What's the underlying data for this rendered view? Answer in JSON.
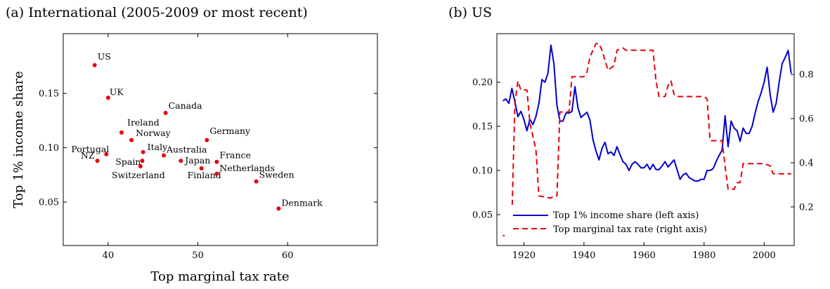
{
  "chart_data": [
    {
      "type": "scatter",
      "title": "(a) International (2005-2009 or most recent)",
      "xlabel": "Top marginal tax rate",
      "ylabel": "Top 1% income share",
      "xlim": [
        35,
        70
      ],
      "ylim": [
        0.01,
        0.205
      ],
      "xticks": [
        "40",
        "50",
        "60"
      ],
      "yticks": [
        "0.05",
        "0.10",
        "0.15"
      ],
      "color": "#e8000b",
      "points": [
        {
          "label": "US",
          "x": 38.5,
          "y": 0.176
        },
        {
          "label": "UK",
          "x": 40.0,
          "y": 0.146
        },
        {
          "label": "Canada",
          "x": 46.4,
          "y": 0.132
        },
        {
          "label": "Ireland",
          "x": 41.5,
          "y": 0.114
        },
        {
          "label": "Norway",
          "x": 42.6,
          "y": 0.107
        },
        {
          "label": "Germany",
          "x": 51.0,
          "y": 0.107
        },
        {
          "label": "Portugal",
          "x": 39.8,
          "y": 0.094
        },
        {
          "label": "Italy",
          "x": 43.9,
          "y": 0.096
        },
        {
          "label": "Australia",
          "x": 46.2,
          "y": 0.093
        },
        {
          "label": "NZ",
          "x": 38.8,
          "y": 0.088
        },
        {
          "label": "Spain",
          "x": 43.8,
          "y": 0.088
        },
        {
          "label": "Japan",
          "x": 48.1,
          "y": 0.088
        },
        {
          "label": "France",
          "x": 52.1,
          "y": 0.087
        },
        {
          "label": "Switzerland",
          "x": 43.6,
          "y": 0.083
        },
        {
          "label": "Finland",
          "x": 50.4,
          "y": 0.081
        },
        {
          "label": "Netherlands",
          "x": 52.1,
          "y": 0.076
        },
        {
          "label": "Sweden",
          "x": 56.5,
          "y": 0.069
        },
        {
          "label": "Denmark",
          "x": 59.0,
          "y": 0.044
        }
      ]
    },
    {
      "type": "line",
      "title": "(b) US",
      "xlim": [
        1911,
        2010
      ],
      "ylim_left": [
        0.015,
        0.255
      ],
      "ylim_right": [
        0.025,
        0.985
      ],
      "xticks": [
        "1920",
        "1940",
        "1960",
        "1980",
        "2000"
      ],
      "yticks_left": [
        "0.05",
        "0.10",
        "0.15",
        "0.20"
      ],
      "yticks_right": [
        "0.2",
        "0.4",
        "0.6",
        "0.8"
      ],
      "legend_position": "bottom-left",
      "series": [
        {
          "name": "Top 1% income share (left axis)",
          "axis": "left",
          "color": "#0000cc",
          "style": "solid",
          "points": [
            [
              1913,
              0.179
            ],
            [
              1914,
              0.181
            ],
            [
              1915,
              0.176
            ],
            [
              1916,
              0.193
            ],
            [
              1917,
              0.178
            ],
            [
              1918,
              0.161
            ],
            [
              1919,
              0.167
            ],
            [
              1920,
              0.158
            ],
            [
              1921,
              0.145
            ],
            [
              1922,
              0.158
            ],
            [
              1923,
              0.152
            ],
            [
              1924,
              0.161
            ],
            [
              1925,
              0.176
            ],
            [
              1926,
              0.203
            ],
            [
              1927,
              0.2
            ],
            [
              1928,
              0.21
            ],
            [
              1929,
              0.242
            ],
            [
              1930,
              0.221
            ],
            [
              1931,
              0.174
            ],
            [
              1932,
              0.156
            ],
            [
              1933,
              0.156
            ],
            [
              1934,
              0.165
            ],
            [
              1935,
              0.165
            ],
            [
              1936,
              0.167
            ],
            [
              1937,
              0.195
            ],
            [
              1938,
              0.171
            ],
            [
              1939,
              0.16
            ],
            [
              1940,
              0.163
            ],
            [
              1941,
              0.166
            ],
            [
              1942,
              0.157
            ],
            [
              1943,
              0.135
            ],
            [
              1944,
              0.122
            ],
            [
              1945,
              0.112
            ],
            [
              1946,
              0.125
            ],
            [
              1947,
              0.132
            ],
            [
              1948,
              0.119
            ],
            [
              1949,
              0.121
            ],
            [
              1950,
              0.117
            ],
            [
              1951,
              0.127
            ],
            [
              1952,
              0.118
            ],
            [
              1953,
              0.11
            ],
            [
              1954,
              0.107
            ],
            [
              1955,
              0.1
            ],
            [
              1956,
              0.107
            ],
            [
              1957,
              0.11
            ],
            [
              1958,
              0.107
            ],
            [
              1959,
              0.103
            ],
            [
              1960,
              0.103
            ],
            [
              1961,
              0.107
            ],
            [
              1962,
              0.101
            ],
            [
              1963,
              0.107
            ],
            [
              1964,
              0.101
            ],
            [
              1965,
              0.101
            ],
            [
              1966,
              0.105
            ],
            [
              1967,
              0.11
            ],
            [
              1968,
              0.104
            ],
            [
              1969,
              0.108
            ],
            [
              1970,
              0.112
            ],
            [
              1971,
              0.101
            ],
            [
              1972,
              0.09
            ],
            [
              1973,
              0.095
            ],
            [
              1974,
              0.097
            ],
            [
              1975,
              0.092
            ],
            [
              1976,
              0.09
            ],
            [
              1977,
              0.088
            ],
            [
              1978,
              0.088
            ],
            [
              1979,
              0.09
            ],
            [
              1980,
              0.09
            ],
            [
              1981,
              0.1
            ],
            [
              1982,
              0.1
            ],
            [
              1983,
              0.102
            ],
            [
              1984,
              0.11
            ],
            [
              1985,
              0.117
            ],
            [
              1986,
              0.123
            ],
            [
              1987,
              0.162
            ],
            [
              1988,
              0.127
            ],
            [
              1989,
              0.156
            ],
            [
              1990,
              0.148
            ],
            [
              1991,
              0.145
            ],
            [
              1992,
              0.133
            ],
            [
              1993,
              0.148
            ],
            [
              1994,
              0.142
            ],
            [
              1995,
              0.142
            ],
            [
              1996,
              0.15
            ],
            [
              1997,
              0.165
            ],
            [
              1998,
              0.178
            ],
            [
              1999,
              0.188
            ],
            [
              2000,
              0.2
            ],
            [
              2001,
              0.217
            ],
            [
              2002,
              0.186
            ],
            [
              2003,
              0.166
            ],
            [
              2004,
              0.176
            ],
            [
              2005,
              0.2
            ],
            [
              2006,
              0.221
            ],
            [
              2007,
              0.228
            ],
            [
              2008,
              0.236
            ],
            [
              2009,
              0.21
            ]
          ]
        },
        {
          "name": "Top marginal tax rate (right axis)",
          "axis": "right",
          "color": "#e8000b",
          "style": "dashed",
          "points": [
            [
              1913,
              0.07
            ],
            [
              1915,
              0.07
            ],
            [
              1916,
              0.15
            ],
            [
              1917,
              0.67
            ],
            [
              1918,
              0.77
            ],
            [
              1919,
              0.73
            ],
            [
              1921,
              0.73
            ],
            [
              1922,
              0.58
            ],
            [
              1924,
              0.46
            ],
            [
              1925,
              0.25
            ],
            [
              1929,
              0.24
            ],
            [
              1930,
              0.25
            ],
            [
              1931,
              0.25
            ],
            [
              1932,
              0.63
            ],
            [
              1935,
              0.63
            ],
            [
              1936,
              0.79
            ],
            [
              1940,
              0.79
            ],
            [
              1941,
              0.81
            ],
            [
              1942,
              0.88
            ],
            [
              1944,
              0.94
            ],
            [
              1945,
              0.94
            ],
            [
              1946,
              0.91
            ],
            [
              1948,
              0.82
            ],
            [
              1950,
              0.84
            ],
            [
              1951,
              0.91
            ],
            [
              1953,
              0.92
            ],
            [
              1954,
              0.91
            ],
            [
              1963,
              0.91
            ],
            [
              1964,
              0.77
            ],
            [
              1965,
              0.7
            ],
            [
              1967,
              0.7
            ],
            [
              1968,
              0.75
            ],
            [
              1969,
              0.77
            ],
            [
              1970,
              0.71
            ],
            [
              1971,
              0.7
            ],
            [
              1980,
              0.7
            ],
            [
              1981,
              0.69
            ],
            [
              1982,
              0.5
            ],
            [
              1986,
              0.5
            ],
            [
              1987,
              0.385
            ],
            [
              1988,
              0.28
            ],
            [
              1990,
              0.28
            ],
            [
              1991,
              0.31
            ],
            [
              1992,
              0.31
            ],
            [
              1993,
              0.396
            ],
            [
              2000,
              0.396
            ],
            [
              2001,
              0.391
            ],
            [
              2002,
              0.386
            ],
            [
              2003,
              0.35
            ],
            [
              2009,
              0.35
            ]
          ]
        }
      ]
    }
  ]
}
